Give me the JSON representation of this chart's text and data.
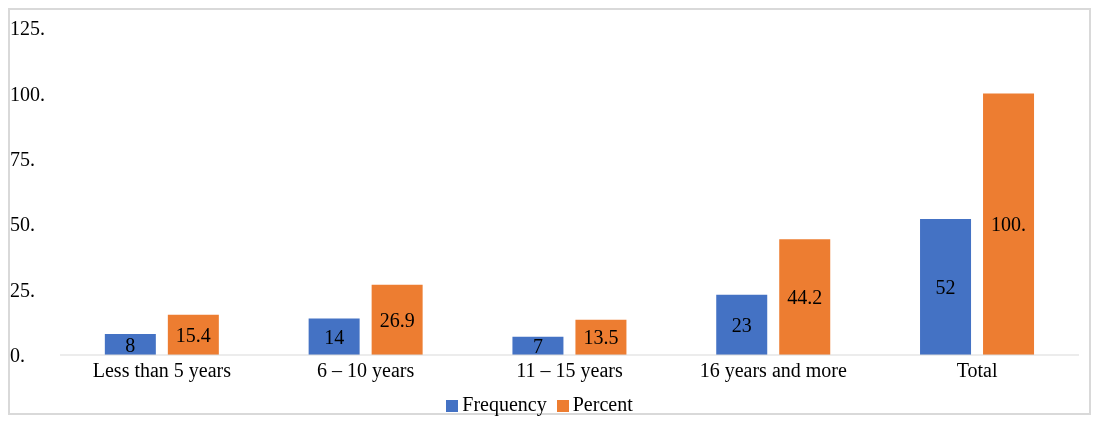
{
  "chart_data": {
    "type": "bar",
    "categories": [
      "Less than 5 years",
      "6 – 10 years",
      "11 – 15 years",
      "16 years and more",
      "Total"
    ],
    "series": [
      {
        "name": "Frequency",
        "color": "#4472c4",
        "values": [
          8,
          14,
          7,
          23,
          52
        ],
        "value_labels": [
          "8",
          "14",
          "7",
          "23",
          "52"
        ]
      },
      {
        "name": "Percent",
        "color": "#ed7d31",
        "values": [
          15.4,
          26.9,
          13.5,
          44.2,
          100
        ],
        "value_labels": [
          "15.4",
          "26.9",
          "13.5",
          "44.2",
          "100."
        ]
      }
    ],
    "ylim": [
      0,
      125
    ],
    "yticks": [
      {
        "value": 0,
        "label": "0."
      },
      {
        "value": 25,
        "label": "25."
      },
      {
        "value": 50,
        "label": "50."
      },
      {
        "value": 75,
        "label": "75."
      },
      {
        "value": 100,
        "label": "100."
      },
      {
        "value": 125,
        "label": "125."
      }
    ],
    "grid": false,
    "legend": "bottom"
  }
}
